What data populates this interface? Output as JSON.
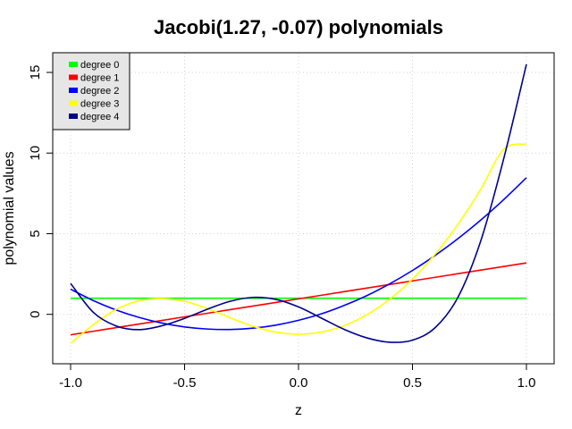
{
  "chart_data": {
    "type": "line",
    "title": "Jacobi(1.27, -0.07) polynomials",
    "xlabel": "z",
    "ylabel": "polynomial values",
    "xlim": [
      -1.0,
      1.0
    ],
    "ylim": [
      -1.9,
      15.5
    ],
    "x_ticks": [
      -1.0,
      -0.5,
      0.0,
      0.5,
      1.0
    ],
    "x_tick_labels": [
      "-1.0",
      "-0.5",
      "0.0",
      "0.5",
      "1.0"
    ],
    "y_ticks": [
      0,
      5,
      10,
      15
    ],
    "y_tick_labels": [
      "0",
      "5",
      "10",
      "15"
    ],
    "grid": true,
    "legend_position": "top-left",
    "x": [
      -1.0,
      -0.9,
      -0.8,
      -0.7,
      -0.6,
      -0.5,
      -0.4,
      -0.3,
      -0.2,
      -0.1,
      0.0,
      0.1,
      0.2,
      0.3,
      0.4,
      0.5,
      0.6,
      0.7,
      0.8,
      0.9,
      1.0
    ],
    "series": [
      {
        "name": "degree 0",
        "color": "#00ff00",
        "values": [
          1.0,
          1.0,
          1.0,
          1.0,
          1.0,
          1.0,
          1.0,
          1.0,
          1.0,
          1.0,
          1.0,
          1.0,
          1.0,
          1.0,
          1.0,
          1.0,
          1.0,
          1.0,
          1.0,
          1.0,
          1.0
        ]
      },
      {
        "name": "degree 1",
        "color": "#ff0000",
        "values": [
          -1.27,
          -1.047,
          -0.824,
          -0.601,
          -0.378,
          -0.155,
          0.068,
          0.291,
          0.514,
          0.737,
          0.96,
          1.183,
          1.406,
          1.629,
          1.852,
          2.075,
          2.298,
          2.521,
          2.744,
          2.967,
          3.19
        ]
      },
      {
        "name": "degree 2",
        "color": "#0000ff",
        "values": [
          1.56,
          0.85,
          0.27,
          -0.19,
          -0.54,
          -0.78,
          -0.91,
          -0.94,
          -0.86,
          -0.67,
          -0.37,
          0.03,
          0.55,
          1.16,
          1.89,
          2.72,
          3.66,
          4.7,
          5.85,
          7.11,
          8.47
        ]
      },
      {
        "name": "degree 3",
        "color": "#ffff00",
        "values": [
          -1.79,
          -0.64,
          0.31,
          0.84,
          0.98,
          0.8,
          0.36,
          -0.21,
          -0.74,
          -1.1,
          -1.23,
          -1.1,
          -0.7,
          -0.02,
          0.94,
          2.19,
          3.74,
          5.6,
          7.77,
          10.24,
          10.56
        ]
      },
      {
        "name": "degree 4",
        "color": "#00008b",
        "values": [
          1.92,
          0.12,
          -0.72,
          -0.95,
          -0.71,
          -0.25,
          0.32,
          0.81,
          1.05,
          0.93,
          0.46,
          -0.23,
          -0.93,
          -1.46,
          -1.73,
          -1.6,
          -0.82,
          1.07,
          4.57,
          9.63,
          15.5
        ]
      }
    ]
  }
}
